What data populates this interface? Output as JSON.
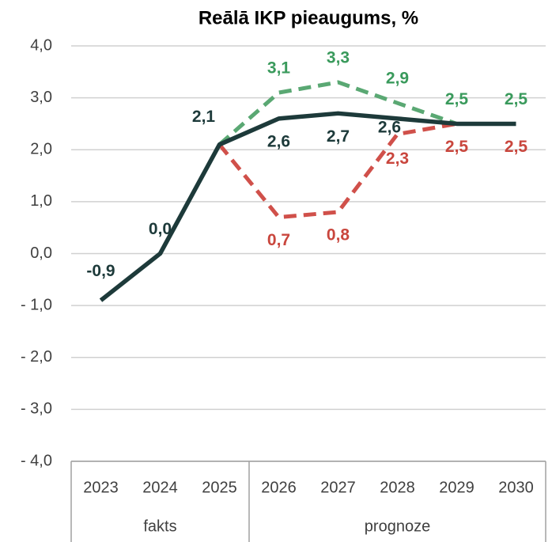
{
  "chart_data": {
    "type": "line",
    "title": "Reālā IKP pieaugums, %",
    "categories": [
      "2023",
      "2024",
      "2025",
      "2026",
      "2027",
      "2028",
      "2029",
      "2030"
    ],
    "groups": [
      {
        "name": "fakts",
        "count": 3
      },
      {
        "name": "prognoze",
        "count": 5
      }
    ],
    "ylim": [
      -4,
      4
    ],
    "yticks": [
      {
        "value": 4,
        "label": "4,0"
      },
      {
        "value": 3,
        "label": "3,0"
      },
      {
        "value": 2,
        "label": "2,0"
      },
      {
        "value": 1,
        "label": "1,0"
      },
      {
        "value": 0,
        "label": "0,0"
      },
      {
        "value": -1,
        "label": "- 1,0"
      },
      {
        "value": -2,
        "label": "- 2,0"
      },
      {
        "value": -3,
        "label": "- 3,0"
      },
      {
        "value": -4,
        "label": "- 4,0"
      }
    ],
    "grid": true,
    "series": [
      {
        "color": "#5aa873",
        "dash": true,
        "values": [
          null,
          null,
          2.1,
          3.1,
          3.3,
          2.9,
          2.5,
          2.5
        ],
        "value_labels": [
          null,
          null,
          null,
          "3,1",
          "3,3",
          "2,9",
          "2,5",
          "2,5"
        ]
      },
      {
        "color": "#d0504a",
        "dash": true,
        "values": [
          null,
          null,
          2.1,
          0.7,
          0.8,
          2.3,
          2.5,
          2.5
        ],
        "value_labels": [
          null,
          null,
          null,
          "0,7",
          "0,8",
          "2,3",
          "2,5",
          "2,5"
        ]
      },
      {
        "color": "#1d3a3a",
        "dash": false,
        "values": [
          -0.9,
          0.0,
          2.1,
          2.6,
          2.7,
          2.6,
          2.5,
          2.5
        ],
        "value_labels": [
          "-0,9",
          "0,0",
          "2,1",
          "2,6",
          "2,7",
          "2,6",
          null,
          null
        ]
      }
    ]
  }
}
